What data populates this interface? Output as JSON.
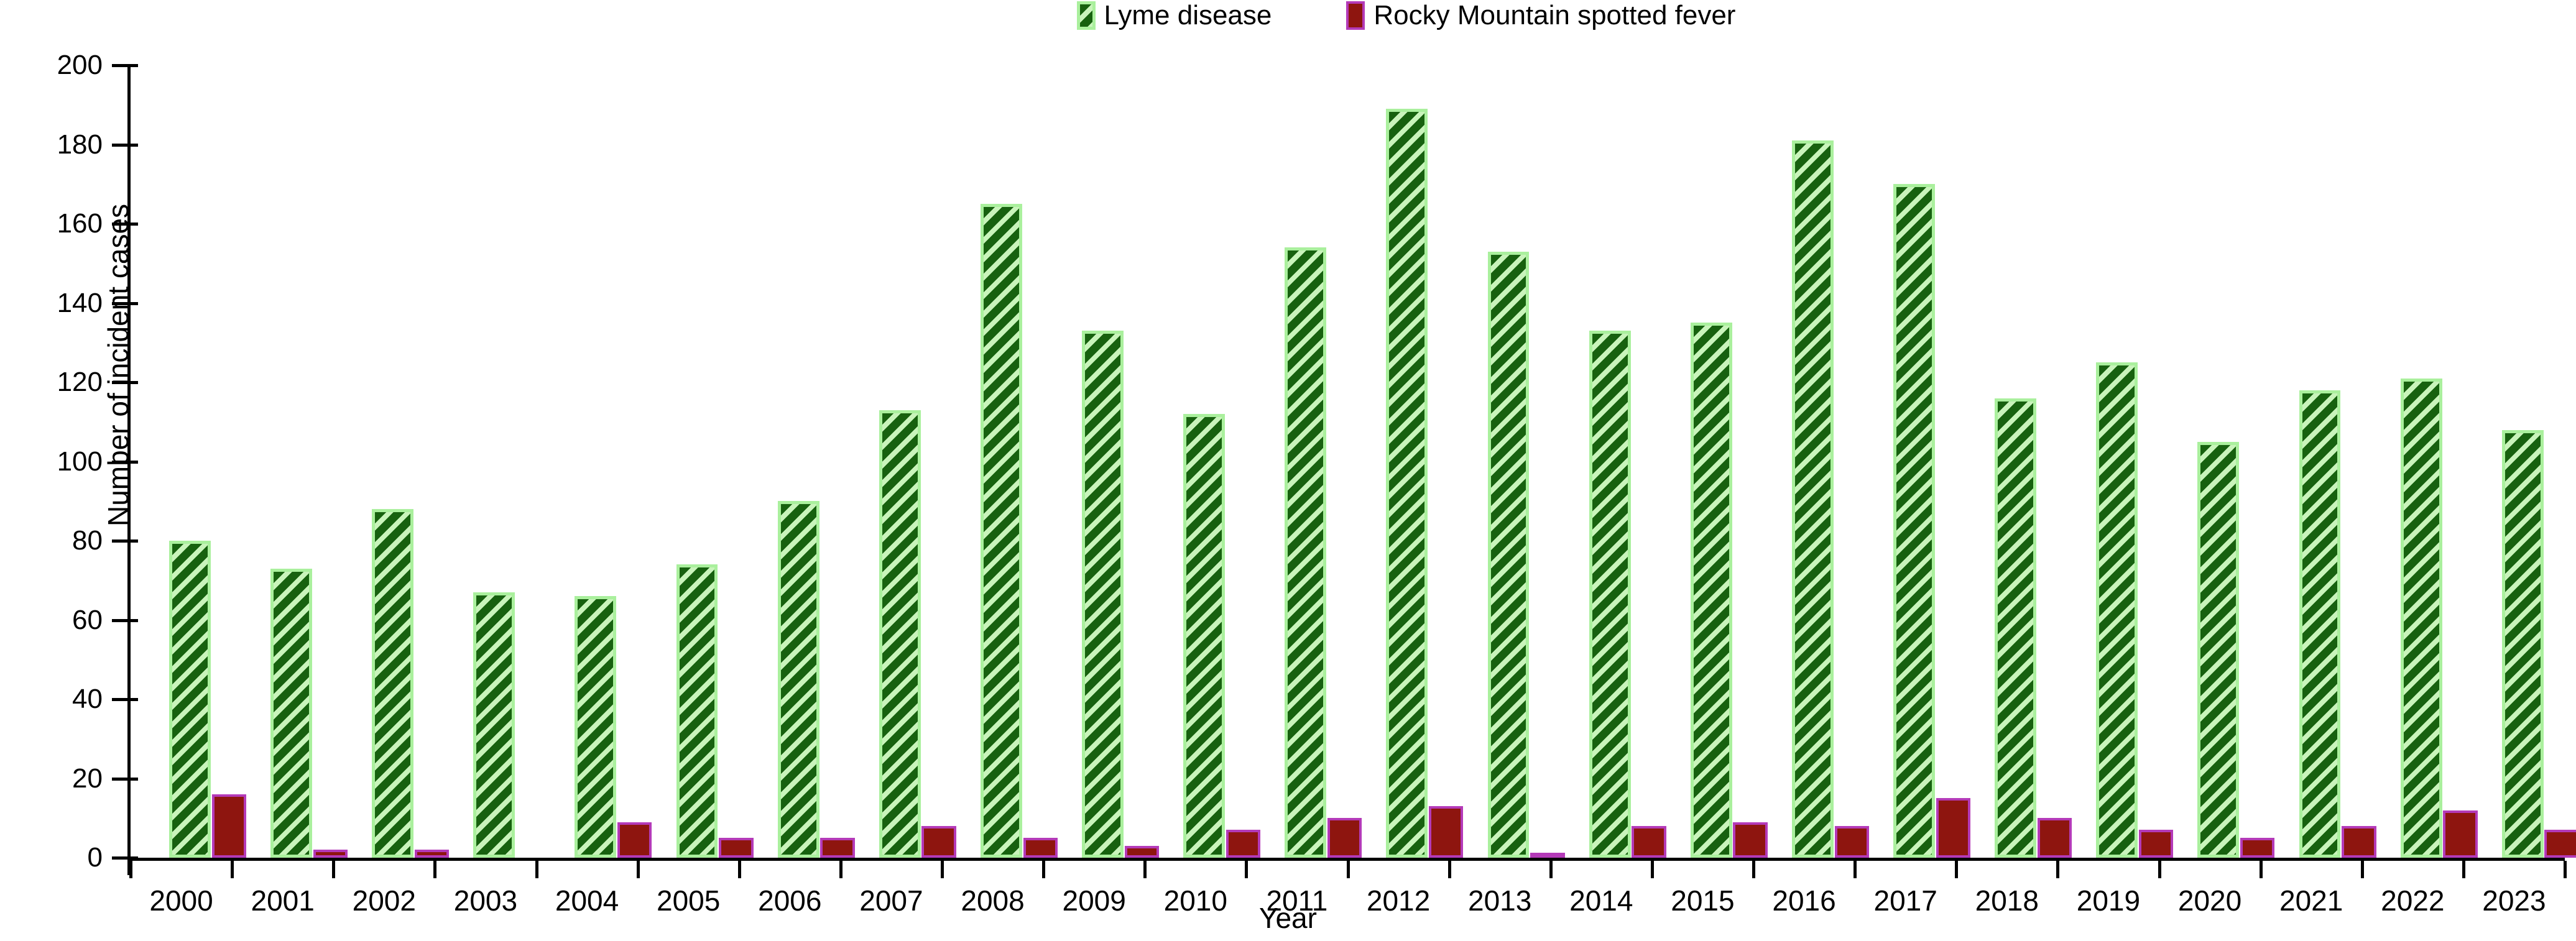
{
  "chart_data": {
    "type": "bar",
    "title": "",
    "xlabel": "Year",
    "ylabel": "Number of incident cases",
    "ylim": [
      0,
      200
    ],
    "ytick_step": 20,
    "yticks": [
      0,
      20,
      40,
      60,
      80,
      100,
      120,
      140,
      160,
      180,
      200
    ],
    "grid": false,
    "legend_position": "top-center",
    "background_color": "#ffffff",
    "axis_color": "#000000",
    "categories": [
      "2000",
      "2001",
      "2002",
      "2003",
      "2004",
      "2005",
      "2006",
      "2007",
      "2008",
      "2009",
      "2010",
      "2011",
      "2012",
      "2013",
      "2014",
      "2015",
      "2016",
      "2017",
      "2018",
      "2019",
      "2020",
      "2021",
      "2022",
      "2023"
    ],
    "series": [
      {
        "name": "Lyme disease",
        "pattern": "diagonal-hatch",
        "stripe_dark_color": "#17610f",
        "fill_light_color": "#c9f4bb",
        "border_color": "#aaf09d",
        "values": [
          80,
          73,
          88,
          67,
          66,
          74,
          90,
          113,
          165,
          133,
          112,
          154,
          189,
          153,
          133,
          135,
          181,
          170,
          116,
          125,
          105,
          118,
          121,
          108
        ]
      },
      {
        "name": "Rocky Mountain spotted fever",
        "pattern": "solid",
        "fill_color": "#8e150f",
        "border_color": "#b43ab8",
        "values": [
          16,
          2,
          2,
          0,
          9,
          5,
          5,
          8,
          5,
          3,
          7,
          10,
          13,
          1,
          8,
          9,
          8,
          15,
          10,
          7,
          5,
          8,
          12,
          7
        ]
      }
    ]
  }
}
